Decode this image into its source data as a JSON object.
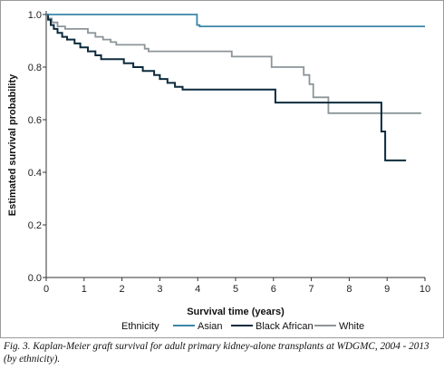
{
  "chart_data": {
    "type": "line",
    "step": true,
    "xlabel": "Survival time (years)",
    "ylabel": "Estimated survival probability",
    "xlim": [
      0,
      10
    ],
    "ylim": [
      0,
      1.0
    ],
    "x_ticks": [
      "0",
      "1",
      "2",
      "3",
      "4",
      "5",
      "6",
      "7",
      "8",
      "9",
      "10"
    ],
    "y_ticks": [
      "0.0",
      "0.2",
      "0.4",
      "0.6",
      "0.8",
      "1.0"
    ],
    "grid": false,
    "legend_title": "Ethnicity",
    "legend_position": "bottom",
    "series": [
      {
        "name": "Asian",
        "color": "#3a86a8",
        "points": [
          [
            0,
            1.0
          ],
          [
            3.98,
            1.0
          ],
          [
            3.98,
            0.96
          ],
          [
            4.05,
            0.96
          ],
          [
            4.05,
            0.955
          ],
          [
            10.0,
            0.955
          ]
        ]
      },
      {
        "name": "Black African",
        "color": "#0d2b3e",
        "points": [
          [
            0,
            1.0
          ],
          [
            0.05,
            1.0
          ],
          [
            0.05,
            0.98
          ],
          [
            0.12,
            0.98
          ],
          [
            0.12,
            0.96
          ],
          [
            0.2,
            0.96
          ],
          [
            0.2,
            0.945
          ],
          [
            0.3,
            0.945
          ],
          [
            0.3,
            0.93
          ],
          [
            0.42,
            0.93
          ],
          [
            0.42,
            0.915
          ],
          [
            0.55,
            0.915
          ],
          [
            0.55,
            0.905
          ],
          [
            0.75,
            0.905
          ],
          [
            0.75,
            0.89
          ],
          [
            0.9,
            0.89
          ],
          [
            0.9,
            0.875
          ],
          [
            1.1,
            0.875
          ],
          [
            1.1,
            0.86
          ],
          [
            1.3,
            0.86
          ],
          [
            1.3,
            0.845
          ],
          [
            1.45,
            0.845
          ],
          [
            1.45,
            0.83
          ],
          [
            2.05,
            0.83
          ],
          [
            2.05,
            0.815
          ],
          [
            2.3,
            0.815
          ],
          [
            2.3,
            0.8
          ],
          [
            2.55,
            0.8
          ],
          [
            2.55,
            0.785
          ],
          [
            2.85,
            0.785
          ],
          [
            2.85,
            0.77
          ],
          [
            3.0,
            0.77
          ],
          [
            3.0,
            0.755
          ],
          [
            3.2,
            0.755
          ],
          [
            3.2,
            0.74
          ],
          [
            3.4,
            0.74
          ],
          [
            3.4,
            0.725
          ],
          [
            3.6,
            0.725
          ],
          [
            3.6,
            0.715
          ],
          [
            6.05,
            0.715
          ],
          [
            6.05,
            0.665
          ],
          [
            8.85,
            0.665
          ],
          [
            8.85,
            0.555
          ],
          [
            8.95,
            0.555
          ],
          [
            8.95,
            0.445
          ],
          [
            9.5,
            0.445
          ]
        ]
      },
      {
        "name": "White",
        "color": "#8c9599",
        "points": [
          [
            0,
            1.0
          ],
          [
            0.05,
            1.0
          ],
          [
            0.05,
            0.985
          ],
          [
            0.15,
            0.985
          ],
          [
            0.15,
            0.97
          ],
          [
            0.3,
            0.97
          ],
          [
            0.3,
            0.955
          ],
          [
            0.5,
            0.955
          ],
          [
            0.5,
            0.945
          ],
          [
            1.1,
            0.945
          ],
          [
            1.1,
            0.93
          ],
          [
            1.3,
            0.93
          ],
          [
            1.3,
            0.915
          ],
          [
            1.5,
            0.915
          ],
          [
            1.5,
            0.905
          ],
          [
            1.7,
            0.905
          ],
          [
            1.7,
            0.895
          ],
          [
            1.85,
            0.895
          ],
          [
            1.85,
            0.885
          ],
          [
            2.6,
            0.885
          ],
          [
            2.6,
            0.87
          ],
          [
            2.7,
            0.87
          ],
          [
            2.7,
            0.86
          ],
          [
            4.9,
            0.86
          ],
          [
            4.9,
            0.84
          ],
          [
            5.95,
            0.84
          ],
          [
            5.95,
            0.8
          ],
          [
            6.8,
            0.8
          ],
          [
            6.8,
            0.77
          ],
          [
            6.95,
            0.77
          ],
          [
            6.95,
            0.735
          ],
          [
            7.05,
            0.735
          ],
          [
            7.05,
            0.685
          ],
          [
            7.45,
            0.685
          ],
          [
            7.45,
            0.625
          ],
          [
            9.9,
            0.625
          ]
        ]
      }
    ]
  },
  "caption": "Fig. 3. Kaplan-Meier graft survival for adult primary kidney-alone transplants at WDGMC, 2004 - 2013 (by ethnicity)."
}
